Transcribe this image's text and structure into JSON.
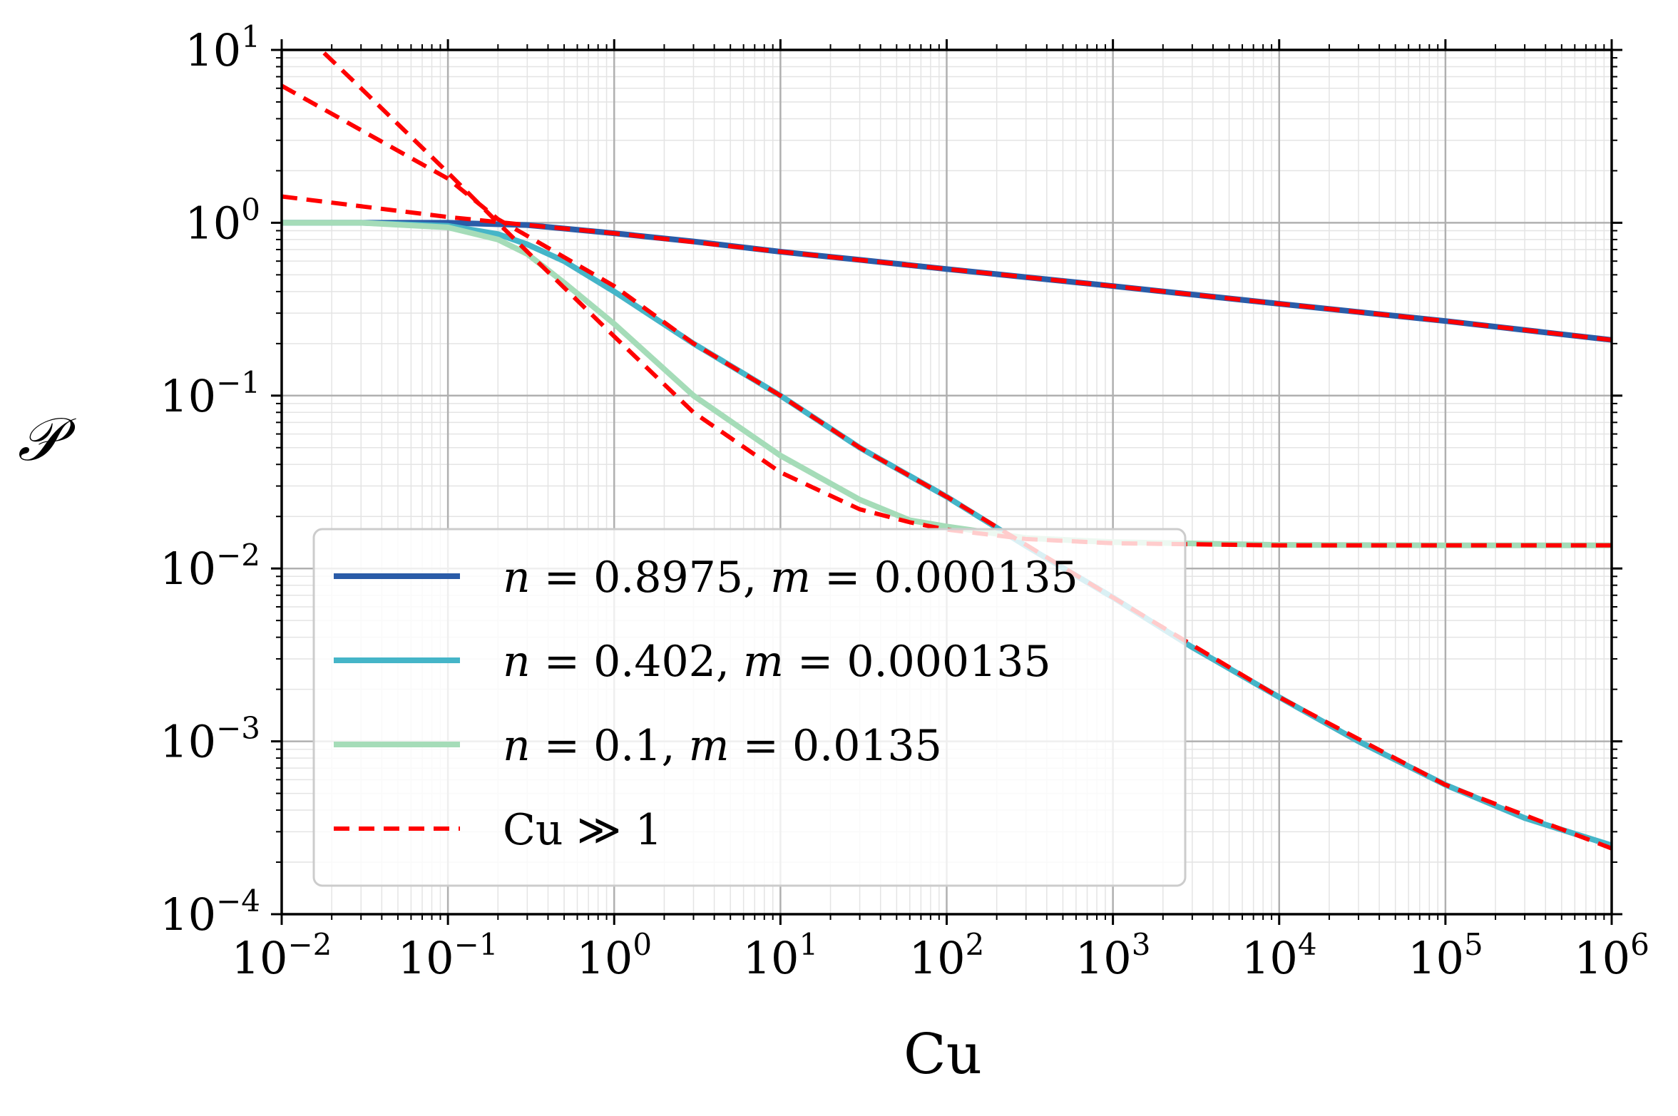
{
  "chart_data": {
    "type": "line",
    "xscale": "log",
    "yscale": "log",
    "xlabel": "Cu",
    "ylabel": "𝒫",
    "xlim": [
      0.01,
      1000000
    ],
    "ylim": [
      0.0001,
      10
    ],
    "x_ticks": [
      {
        "value": 0.01,
        "base": "10",
        "exp": "−2"
      },
      {
        "value": 0.1,
        "base": "10",
        "exp": "−1"
      },
      {
        "value": 1,
        "base": "10",
        "exp": "0"
      },
      {
        "value": 10,
        "base": "10",
        "exp": "1"
      },
      {
        "value": 100,
        "base": "10",
        "exp": "2"
      },
      {
        "value": 1000,
        "base": "10",
        "exp": "3"
      },
      {
        "value": 10000,
        "base": "10",
        "exp": "4"
      },
      {
        "value": 100000,
        "base": "10",
        "exp": "5"
      },
      {
        "value": 1000000,
        "base": "10",
        "exp": "6"
      }
    ],
    "y_ticks": [
      {
        "value": 10,
        "base": "10",
        "exp": "1"
      },
      {
        "value": 1,
        "base": "10",
        "exp": "0"
      },
      {
        "value": 0.1,
        "base": "10",
        "exp": "−1"
      },
      {
        "value": 0.01,
        "base": "10",
        "exp": "−2"
      },
      {
        "value": 0.001,
        "base": "10",
        "exp": "−3"
      },
      {
        "value": 0.0001,
        "base": "10",
        "exp": "−4"
      }
    ],
    "grid": true,
    "legend_position": "lower-left",
    "series": [
      {
        "name": "n = 0.8975, m = 0.000135",
        "color": "#2a5ca8",
        "style": "solid",
        "x": [
          0.01,
          0.03,
          0.1,
          0.3,
          1,
          3,
          10,
          30,
          100,
          1000,
          10000,
          100000,
          1000000
        ],
        "y": [
          1.0,
          1.0,
          1.0,
          0.97,
          0.87,
          0.78,
          0.68,
          0.61,
          0.54,
          0.43,
          0.34,
          0.27,
          0.21
        ]
      },
      {
        "name": "n = 0.402, m = 0.000135",
        "color": "#45b5c8",
        "style": "solid",
        "x": [
          0.01,
          0.03,
          0.1,
          0.2,
          0.3,
          0.5,
          1,
          3,
          10,
          30,
          100,
          300,
          1000,
          3000,
          10000,
          30000,
          100000,
          300000,
          1000000
        ],
        "y": [
          1.0,
          1.0,
          0.96,
          0.86,
          0.75,
          0.6,
          0.4,
          0.2,
          0.1,
          0.05,
          0.026,
          0.0135,
          0.0068,
          0.0035,
          0.0018,
          0.001,
          0.00056,
          0.00036,
          0.00025
        ]
      },
      {
        "name": "n = 0.1, m = 0.0135",
        "color": "#a5dcb8",
        "style": "solid",
        "x": [
          0.01,
          0.03,
          0.1,
          0.2,
          0.3,
          0.5,
          1,
          3,
          10,
          30,
          60,
          100,
          300,
          1000,
          10000,
          100000,
          1000000
        ],
        "y": [
          1.0,
          1.0,
          0.94,
          0.8,
          0.66,
          0.45,
          0.26,
          0.1,
          0.045,
          0.025,
          0.019,
          0.0175,
          0.015,
          0.0142,
          0.0137,
          0.0136,
          0.0136
        ]
      },
      {
        "name": "Cu ≫ 1",
        "color": "#ff0000",
        "style": "dashed",
        "segments": [
          {
            "x": [
              0.01,
              0.1,
              0.3,
              1,
              10,
              100,
              1000,
              10000,
              100000,
              1000000
            ],
            "y": [
              1.42,
              1.08,
              0.97,
              0.87,
              0.68,
              0.54,
              0.43,
              0.34,
              0.27,
              0.21
            ]
          },
          {
            "x": [
              0.01,
              0.1,
              0.2,
              0.3,
              1,
              3,
              10,
              30,
              100,
              1000,
              10000,
              100000,
              1000000
            ],
            "y": [
              6.2,
              1.8,
              1.05,
              0.84,
              0.43,
              0.2,
              0.1,
              0.05,
              0.026,
              0.0068,
              0.0018,
              0.00056,
              0.00024
            ]
          },
          {
            "x": [
              0.018,
              0.03,
              0.1,
              0.2,
              0.3,
              1,
              3,
              10,
              30,
              60,
              100,
              300,
              1000,
              10000,
              100000,
              1000000
            ],
            "y": [
              9.6,
              6.0,
              1.95,
              1.0,
              0.68,
              0.22,
              0.08,
              0.036,
              0.022,
              0.0185,
              0.0168,
              0.0148,
              0.014,
              0.0136,
              0.0136,
              0.0136
            ]
          }
        ]
      }
    ],
    "legend_entries": [
      {
        "var1": "n",
        "val1": " = 0.8975, ",
        "var2": "m",
        "val2": " = 0.000135"
      },
      {
        "var1": "n",
        "val1": " = 0.402, ",
        "var2": "m",
        "val2": " = 0.000135"
      },
      {
        "var1": "n",
        "val1": " = 0.1, ",
        "var2": "m",
        "val2": " = 0.0135"
      },
      {
        "var1": "",
        "val1": "Cu ≫ 1",
        "var2": "",
        "val2": ""
      }
    ]
  }
}
